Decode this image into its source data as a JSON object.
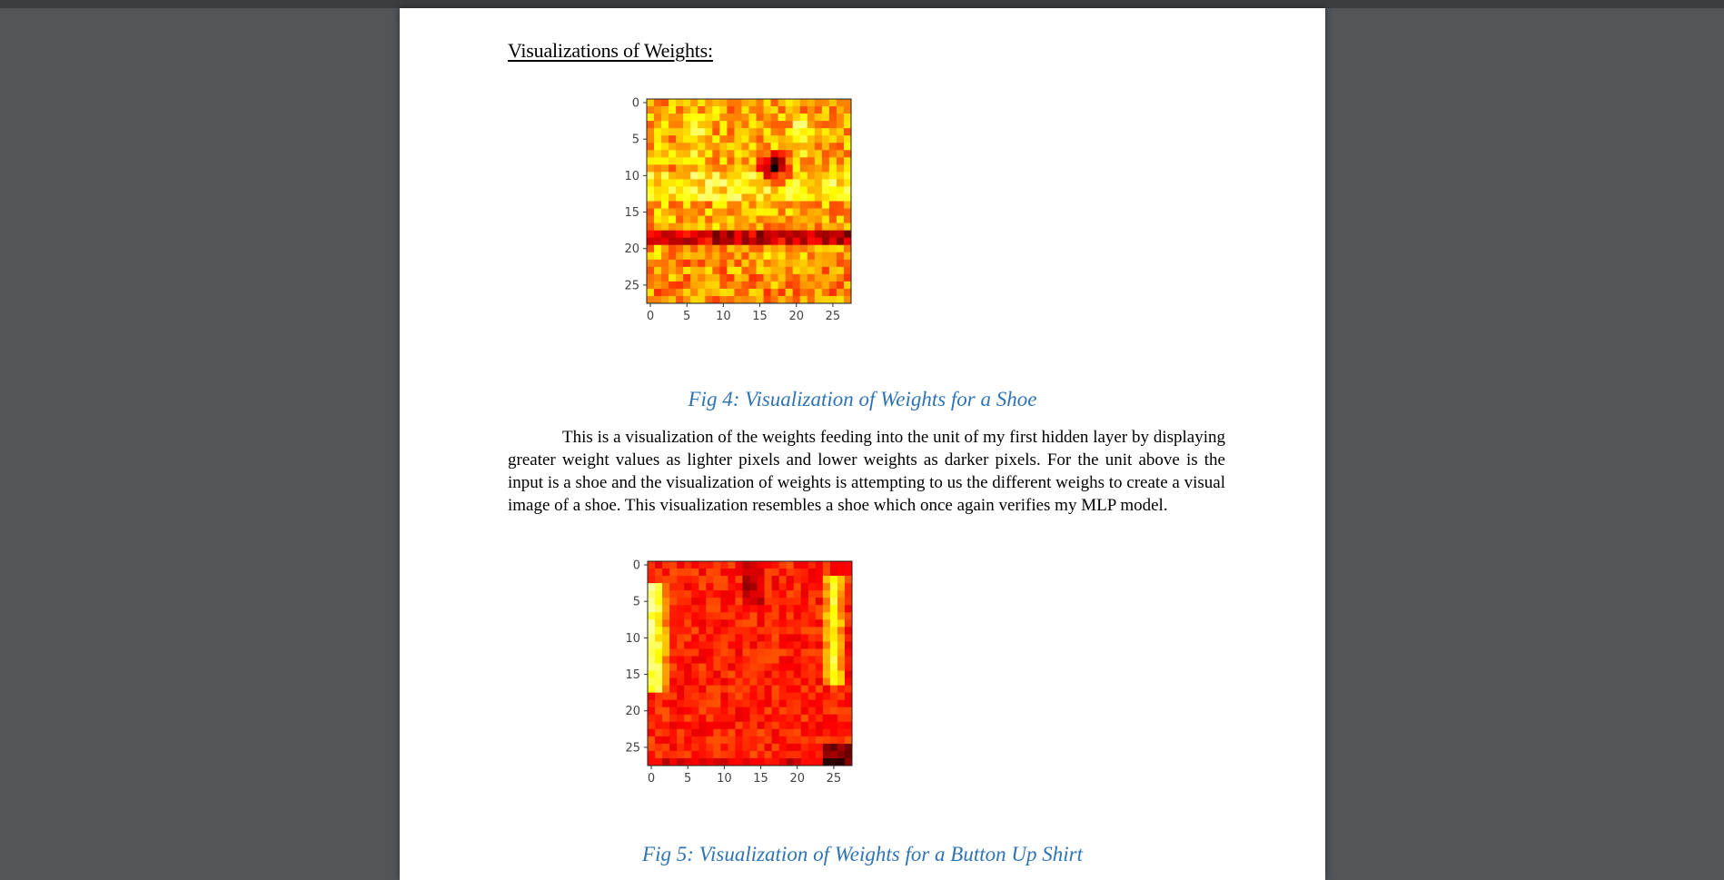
{
  "document": {
    "heading": "Visualizations of Weights:",
    "paragraph": "This is a visualization of the weights feeding into the unit of my first hidden layer by displaying greater weight values as lighter pixels and lower weights as darker pixels. For the unit above is the input is a shoe and the visualization of weights is attempting to us the different weighs to create a visual image of a shoe. This visualization resembles a shoe which once again verifies my MLP model."
  },
  "colors": {
    "caption": "#2e74b5",
    "viewer_background": "#525659"
  },
  "chart_data": [
    {
      "type": "heatmap",
      "title": "",
      "caption": "Fig 4: Visualization of Weights for a Shoe",
      "xlabel": "",
      "ylabel": "",
      "xlim": [
        0,
        27
      ],
      "ylim": [
        0,
        27
      ],
      "grid_size": [
        28,
        28
      ],
      "colormap": "hot",
      "x_ticks": [
        "0",
        "5",
        "10",
        "15",
        "20",
        "25"
      ],
      "y_ticks": [
        "0",
        "5",
        "10",
        "15",
        "20",
        "25"
      ],
      "approx_pattern": "mostly orange/yellow; dark spot near (row 9, col 17); dark red horizontal band at rows 18-19; bright yellow rows near 10-13"
    },
    {
      "type": "heatmap",
      "title": "",
      "caption": "Fig 5: Visualization of Weights for a Button Up Shirt",
      "xlabel": "",
      "ylabel": "",
      "xlim": [
        0,
        27
      ],
      "ylim": [
        0,
        27
      ],
      "grid_size": [
        28,
        28
      ],
      "colormap": "hot",
      "x_ticks": [
        "0",
        "5",
        "10",
        "15",
        "20",
        "25"
      ],
      "y_ticks": [
        "0",
        "5",
        "10",
        "15",
        "20",
        "25"
      ],
      "approx_pattern": "mostly red; bright yellow vertical bands along left (cols 0-2) and right (cols 24-26) edges; darker center column near top; dark bottom-right corner"
    }
  ]
}
